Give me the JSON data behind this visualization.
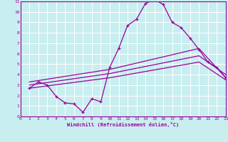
{
  "xlabel": "Windchill (Refroidissement éolien,°C)",
  "bg_color": "#c8eef0",
  "line_color": "#990099",
  "grid_color": "#ffffff",
  "xmin": 0,
  "xmax": 23,
  "ymin": 0,
  "ymax": 11,
  "xticks": [
    0,
    1,
    2,
    3,
    4,
    5,
    6,
    7,
    8,
    9,
    10,
    11,
    12,
    13,
    14,
    15,
    16,
    17,
    18,
    19,
    20,
    21,
    22,
    23
  ],
  "yticks": [
    0,
    1,
    2,
    3,
    4,
    5,
    6,
    7,
    8,
    9,
    10,
    11
  ],
  "line1_x": [
    1,
    2,
    3,
    4,
    5,
    6,
    7,
    8,
    9,
    10,
    11,
    12,
    13,
    14,
    15,
    16,
    17,
    18,
    19,
    20,
    21,
    22,
    23
  ],
  "line1_y": [
    2.7,
    3.3,
    3.0,
    1.9,
    1.3,
    1.2,
    0.4,
    1.7,
    1.4,
    4.7,
    6.5,
    8.7,
    9.3,
    10.8,
    11.2,
    10.7,
    9.0,
    8.5,
    7.5,
    6.4,
    5.2,
    4.7,
    3.7
  ],
  "line2_x": [
    1,
    10,
    20,
    23
  ],
  "line2_y": [
    3.3,
    4.5,
    6.5,
    3.7
  ],
  "line3_x": [
    1,
    10,
    20,
    23
  ],
  "line3_y": [
    3.0,
    4.1,
    5.8,
    4.0
  ],
  "line4_x": [
    1,
    10,
    20,
    23
  ],
  "line4_y": [
    2.7,
    3.7,
    5.2,
    3.5
  ]
}
